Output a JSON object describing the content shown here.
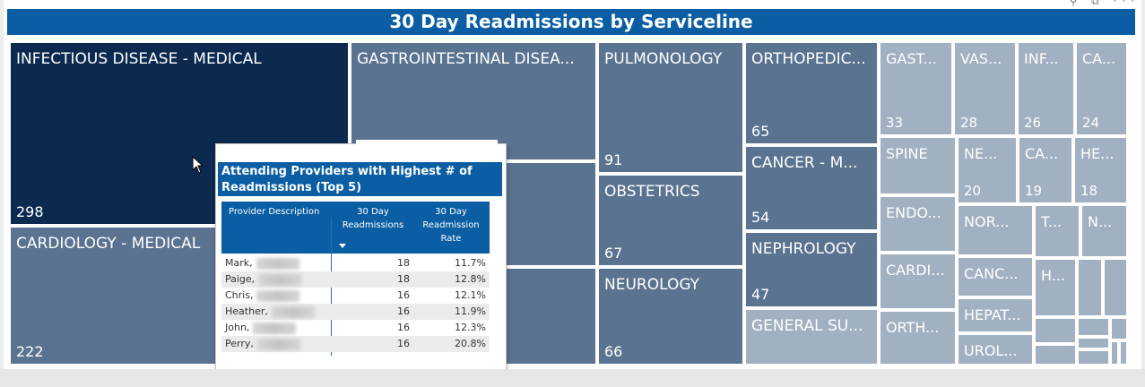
{
  "chart_data": {
    "type": "treemap",
    "title": "30 Day Readmissions by Serviceline",
    "colors": {
      "dark": "#0c2a4f",
      "mid": "#5a7390",
      "light": "#a1b1c1"
    },
    "tiles": [
      {
        "label": "INFECTIOUS DISEASE - MEDICAL",
        "value": "298"
      },
      {
        "label": "CARDIOLOGY - MEDICAL",
        "value": "222"
      },
      {
        "label": "GASTROINTESTINAL DISEA...",
        "value": ""
      },
      {
        "label": "",
        "value": ""
      },
      {
        "label": "",
        "value": ""
      },
      {
        "label": "PULMONOLOGY",
        "value": "91"
      },
      {
        "label": "OBSTETRICS",
        "value": "67"
      },
      {
        "label": "NEUROLOGY",
        "value": "66"
      },
      {
        "label": "ORTHOPEDIC...",
        "value": "65"
      },
      {
        "label": "CANCER - M...",
        "value": "54"
      },
      {
        "label": "NEPHROLOGY",
        "value": "47"
      },
      {
        "label": "GENERAL SU...",
        "value": ""
      },
      {
        "label": "GAST...",
        "value": "33"
      },
      {
        "label": "VAS...",
        "value": "28"
      },
      {
        "label": "INF...",
        "value": "26"
      },
      {
        "label": "CA...",
        "value": "24"
      },
      {
        "label": "SPINE",
        "value": ""
      },
      {
        "label": "NE...",
        "value": "20"
      },
      {
        "label": "CA...",
        "value": "19"
      },
      {
        "label": "HE...",
        "value": "18"
      },
      {
        "label": "ENDO...",
        "value": ""
      },
      {
        "label": "CARDI...",
        "value": ""
      },
      {
        "label": "ORTH...",
        "value": ""
      },
      {
        "label": "NOR...",
        "value": ""
      },
      {
        "label": "CANC...",
        "value": ""
      },
      {
        "label": "HEPAT...",
        "value": ""
      },
      {
        "label": "UROL...",
        "value": ""
      },
      {
        "label": "T...",
        "value": ""
      },
      {
        "label": "N...",
        "value": ""
      },
      {
        "label": "H...",
        "value": ""
      }
    ]
  },
  "tooltip": {
    "title": "Attending Providers with Highest # of Readmissions (Top 5)",
    "col_provider": "Provider Description",
    "col_readmissions": "30 Day Readmissions",
    "col_rate": "30 Day Readmission Rate",
    "rows": [
      {
        "name": "Mark,",
        "readmissions": "18",
        "rate": "11.7%"
      },
      {
        "name": "Paige,",
        "readmissions": "18",
        "rate": "12.8%"
      },
      {
        "name": "Chris,",
        "readmissions": "16",
        "rate": "12.1%"
      },
      {
        "name": "Heather,",
        "readmissions": "16",
        "rate": "11.9%"
      },
      {
        "name": "John,",
        "readmissions": "16",
        "rate": "12.3%"
      },
      {
        "name": "Perry,",
        "readmissions": "16",
        "rate": "20.8%"
      }
    ]
  }
}
